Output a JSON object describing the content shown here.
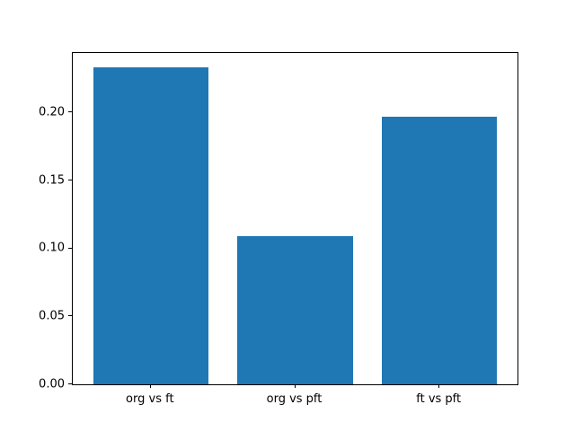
{
  "figure": {
    "background": "#ffffff",
    "spine_color": "#000000",
    "text_color": "#000000"
  },
  "chart_data": {
    "type": "bar",
    "categories": [
      "org vs ft",
      "org vs pft",
      "ft vs pft"
    ],
    "values": [
      0.233,
      0.109,
      0.197
    ],
    "title": "",
    "xlabel": "",
    "ylabel": "",
    "ylim": [
      0,
      0.2438
    ],
    "yticks": [
      0.0,
      0.05,
      0.1,
      0.15,
      0.2
    ],
    "ytick_labels": [
      "0.00",
      "0.05",
      "0.10",
      "0.15",
      "0.20"
    ],
    "bar_color": "#1f77b4",
    "bar_width_fraction": 0.8,
    "grid": false,
    "legend_position": "none"
  }
}
